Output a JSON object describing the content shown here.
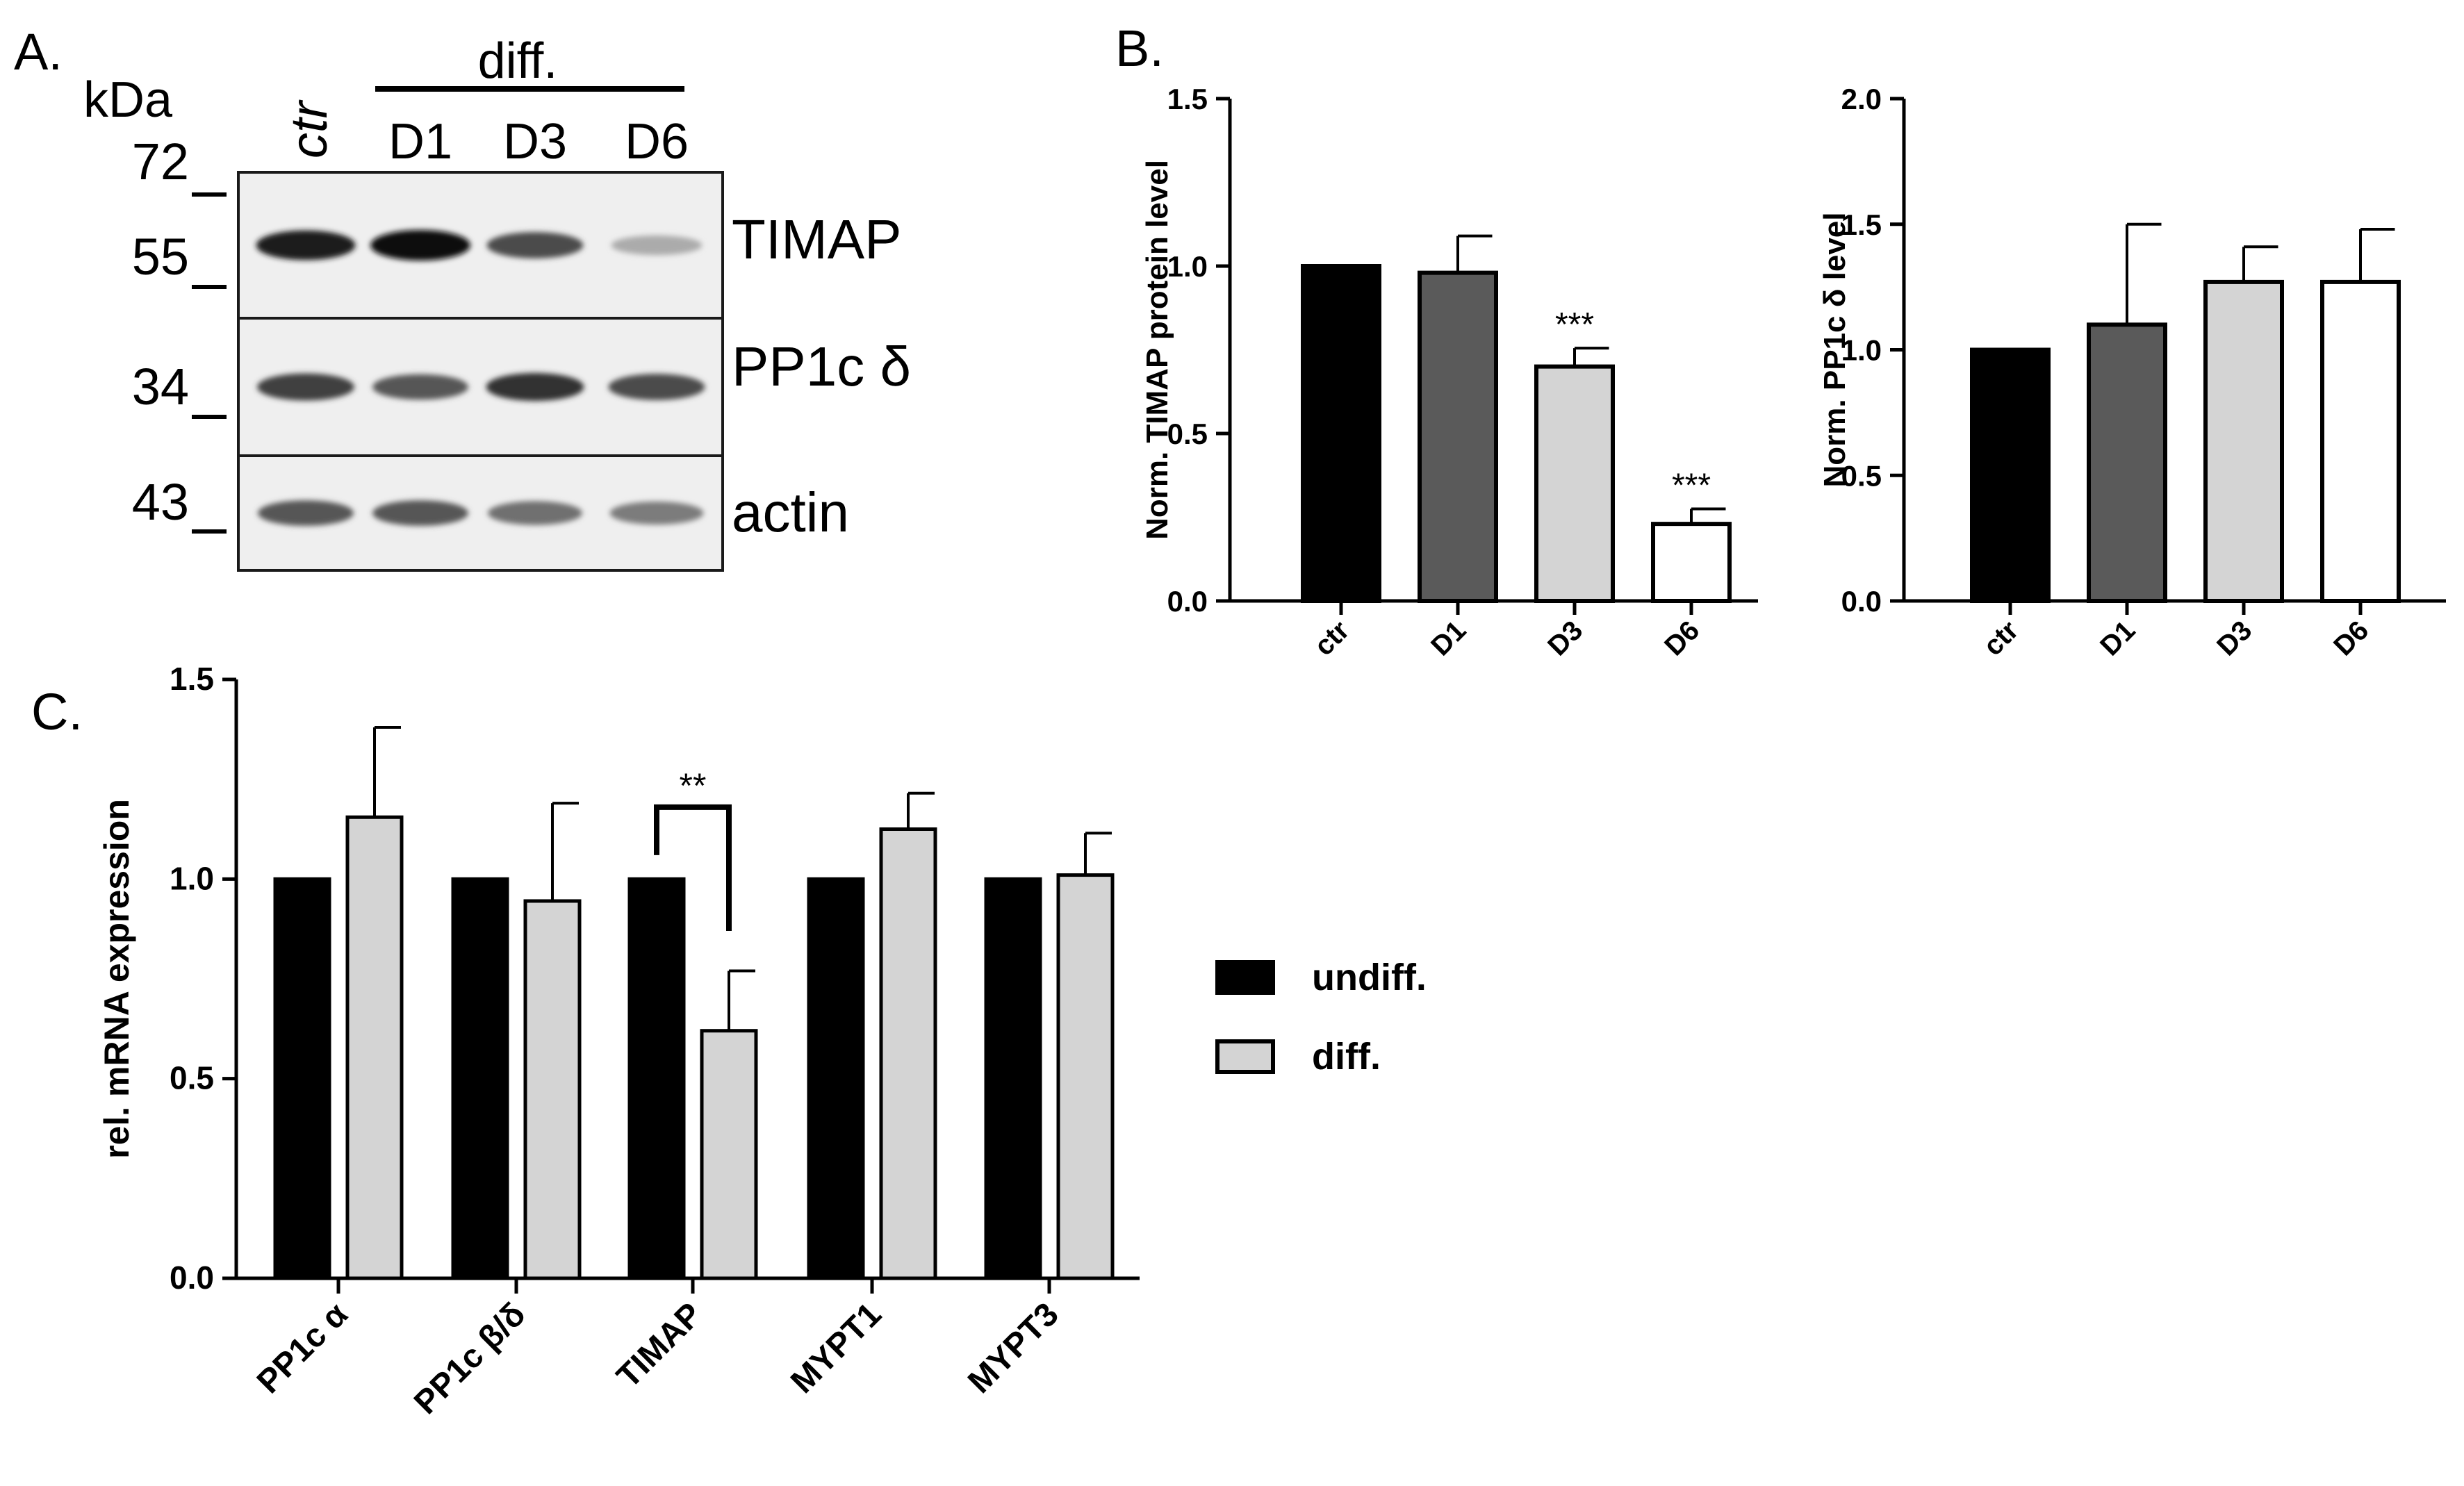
{
  "panels": {
    "a": "A.",
    "b": "B.",
    "c": "C."
  },
  "blot": {
    "kda_label": "kDa",
    "lanes": [
      "ctr",
      "D1",
      "D3",
      "D6"
    ],
    "group_label": "diff.",
    "markers": [
      "72",
      "55",
      "34",
      "43"
    ],
    "rows": [
      {
        "label": "TIMAP",
        "intensities": [
          0.95,
          1.0,
          0.75,
          0.35
        ]
      },
      {
        "label": "PP1c δ",
        "intensities": [
          0.8,
          0.7,
          0.85,
          0.75
        ]
      },
      {
        "label": "actin",
        "intensities": [
          0.7,
          0.7,
          0.6,
          0.55
        ]
      }
    ]
  },
  "chart_data": [
    {
      "id": "timap",
      "type": "bar",
      "categories": [
        "ctr",
        "D1",
        "D3",
        "D6"
      ],
      "values": [
        1.0,
        0.98,
        0.7,
        0.23
      ],
      "errors": [
        0,
        0.11,
        0.055,
        0.045
      ],
      "colors": [
        "#000000",
        "#5a5a5a",
        "#d4d4d4",
        "#ffffff"
      ],
      "significance": [
        "",
        "",
        "***",
        "***"
      ],
      "title": "",
      "xlabel": "",
      "ylabel": "Norm. TIMAP protein level",
      "ylim": [
        0,
        1.5
      ],
      "yticks": [
        0.0,
        0.5,
        1.0,
        1.5
      ],
      "ytick_labels": [
        "0.0",
        "0.5",
        "1.0",
        "1.5"
      ],
      "grid": false
    },
    {
      "id": "pp1c",
      "type": "bar",
      "categories": [
        "ctr",
        "D1",
        "D3",
        "D6"
      ],
      "values": [
        1.0,
        1.1,
        1.27,
        1.27
      ],
      "errors": [
        0,
        0.4,
        0.14,
        0.21
      ],
      "colors": [
        "#000000",
        "#5a5a5a",
        "#d4d4d4",
        "#ffffff"
      ],
      "significance": [
        "",
        "",
        "",
        ""
      ],
      "title": "",
      "xlabel": "",
      "ylabel": "Norm. PP1c δ level",
      "ylim": [
        0,
        2.0
      ],
      "yticks": [
        0.0,
        0.5,
        1.0,
        1.5,
        2.0
      ],
      "ytick_labels": [
        "0.0",
        "0.5",
        "1.0",
        "1.5",
        "2.0"
      ],
      "grid": false
    },
    {
      "id": "mrna",
      "type": "bar",
      "categories": [
        "PP1c α",
        "PP1c β/δ",
        "TIMAP",
        "MYPT1",
        "MYPT3"
      ],
      "series": [
        {
          "name": "undiff.",
          "color": "#000000",
          "values": [
            1.0,
            1.0,
            1.0,
            1.0,
            1.0
          ],
          "errors": [
            0,
            0,
            0,
            0,
            0
          ]
        },
        {
          "name": "diff.",
          "color": "#d4d4d4",
          "values": [
            1.155,
            0.945,
            0.62,
            1.125,
            1.01
          ],
          "errors": [
            0.225,
            0.245,
            0.15,
            0.09,
            0.105
          ]
        }
      ],
      "significance": {
        "category": "TIMAP",
        "label": "**"
      },
      "title": "",
      "xlabel": "",
      "ylabel": "rel. mRNA expression",
      "ylim": [
        0,
        1.5
      ],
      "yticks": [
        0.0,
        0.5,
        1.0,
        1.5
      ],
      "ytick_labels": [
        "0.0",
        "0.5",
        "1.0",
        "1.5"
      ],
      "legend_position": "right",
      "grid": false
    }
  ]
}
